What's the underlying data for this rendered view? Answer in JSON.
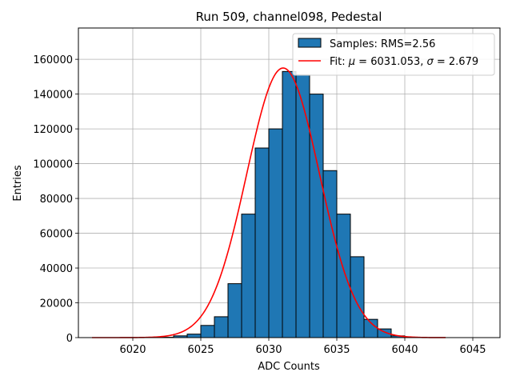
{
  "chart_data": {
    "type": "bar",
    "title": "Run 509, channel098, Pedestal",
    "xlabel": "ADC Counts",
    "ylabel": "Entries",
    "xlim": [
      6016.0,
      6047.0
    ],
    "ylim": [
      0,
      178000
    ],
    "x_ticks": [
      6020,
      6025,
      6030,
      6035,
      6040,
      6045
    ],
    "y_ticks": [
      0,
      20000,
      40000,
      60000,
      80000,
      100000,
      120000,
      140000,
      160000
    ],
    "grid": true,
    "legend_position": "top-right",
    "bar_color": "#1f77b4",
    "bar_edge_color": "#000000",
    "fit_color": "#ff0000",
    "histogram": {
      "name": "Samples: RMS=2.56",
      "bin_width": 1,
      "bin_left_edges": [
        6022,
        6023,
        6024,
        6025,
        6026,
        6027,
        6028,
        6029,
        6030,
        6031,
        6032,
        6033,
        6034,
        6035,
        6036,
        6037,
        6038,
        6039
      ],
      "counts": [
        200,
        1000,
        2000,
        7000,
        12000,
        31000,
        71000,
        109000,
        120000,
        153000,
        151000,
        140000,
        96000,
        71000,
        46500,
        10500,
        5000,
        1000
      ]
    },
    "fit": {
      "name": "Fit: μ = 6031.053, σ = 2.679",
      "function": "gaussian",
      "mu": 6031.053,
      "sigma": 2.679,
      "amplitude": 155000,
      "x_range": [
        6017,
        6043
      ]
    }
  }
}
